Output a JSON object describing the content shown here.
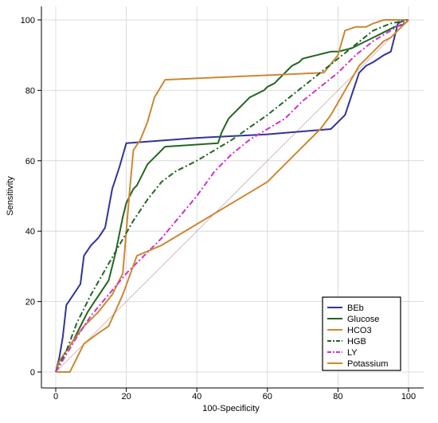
{
  "chart_data": {
    "type": "line",
    "title": "",
    "xlabel": "100-Specificity",
    "ylabel": "Sensitivity",
    "xlim": [
      0,
      100
    ],
    "ylim": [
      0,
      100
    ],
    "xticks": [
      0,
      20,
      40,
      60,
      80,
      100
    ],
    "yticks": [
      0,
      20,
      40,
      60,
      80,
      100
    ],
    "grid": true,
    "legend_position": "bottom-right",
    "reference_line": {
      "x": [
        0,
        100
      ],
      "y": [
        0,
        100
      ],
      "color": "#c9a9a9"
    },
    "series": [
      {
        "name": "BEb",
        "color": "#333399",
        "dash": "solid",
        "x": [
          0,
          1,
          2,
          3,
          5,
          7,
          8,
          10,
          12,
          14,
          16,
          18,
          20,
          40,
          60,
          78,
          80,
          82,
          84,
          86,
          88,
          90,
          93,
          95,
          97,
          99,
          100
        ],
        "y": [
          0,
          4,
          10,
          19,
          22,
          25,
          33,
          36,
          38,
          41,
          52,
          58,
          65,
          66.5,
          67.5,
          69,
          71,
          73,
          79,
          85,
          87,
          88,
          90,
          91,
          99,
          100,
          100
        ]
      },
      {
        "name": "Glucose",
        "color": "#226622",
        "dash": "solid",
        "x": [
          0,
          1,
          3,
          5,
          7,
          9,
          11,
          13,
          15,
          16,
          17,
          18,
          19,
          20,
          21,
          22,
          23,
          24,
          25,
          26,
          27,
          28,
          29,
          31,
          46,
          47,
          48,
          49,
          50,
          51,
          52,
          53,
          54,
          55,
          56,
          57,
          58,
          59,
          60,
          61,
          62,
          63,
          64,
          65,
          66,
          67,
          68,
          69,
          70,
          72,
          74,
          76,
          78,
          80,
          82,
          84,
          86,
          88,
          90,
          92,
          94,
          96,
          98,
          99,
          100
        ],
        "y": [
          0,
          3,
          6,
          9,
          13,
          17,
          20,
          23,
          26,
          30,
          34,
          39,
          44,
          48,
          50,
          52,
          53,
          55,
          57,
          59,
          60,
          61,
          62,
          64,
          65,
          68,
          70,
          72,
          73,
          74,
          75,
          76,
          77,
          78,
          78.5,
          79,
          79.5,
          80,
          81,
          81.5,
          82,
          83,
          84,
          85,
          86,
          87,
          87.5,
          88,
          89,
          89.5,
          90,
          90.5,
          91,
          91,
          91.5,
          92,
          93,
          94,
          95,
          96,
          97,
          98,
          98.5,
          99,
          100
        ]
      },
      {
        "name": "HCO3",
        "color": "#cc8833",
        "dash": "solid",
        "x": [
          0,
          1,
          3,
          5,
          8,
          12,
          16,
          19,
          20,
          21,
          22,
          24,
          26,
          28,
          31,
          76,
          80,
          82,
          85,
          88,
          90,
          93,
          96,
          100
        ],
        "y": [
          0,
          3,
          6,
          9,
          13,
          17,
          22,
          28,
          40,
          52,
          63,
          66,
          71,
          78,
          83,
          85,
          90,
          97,
          98,
          98,
          99,
          100,
          100,
          100
        ]
      },
      {
        "name": "HGB",
        "color": "#226622",
        "dash": "dashdot",
        "x": [
          0,
          3,
          6,
          10,
          14,
          18,
          22,
          26,
          30,
          34,
          40,
          50,
          60,
          70,
          80,
          85,
          90,
          95,
          100
        ],
        "y": [
          0,
          6,
          14,
          22,
          29,
          36,
          43,
          49,
          54,
          57,
          60,
          66,
          73,
          81,
          89,
          93,
          97,
          99,
          100
        ]
      },
      {
        "name": "LY",
        "color": "#cc33cc",
        "dash": "dashdot",
        "x": [
          0,
          3,
          6,
          10,
          15,
          20,
          25,
          30,
          35,
          40,
          45,
          50,
          55,
          60,
          65,
          70,
          75,
          80,
          85,
          90,
          95,
          100
        ],
        "y": [
          0,
          5,
          10,
          16,
          22,
          28,
          33,
          38,
          44,
          50,
          57,
          62,
          66,
          69,
          72,
          77,
          81,
          85,
          90,
          94,
          97,
          100
        ]
      },
      {
        "name": "Potassium",
        "color": "#cc8833",
        "dash": "solid",
        "x": [
          0,
          2,
          4,
          8,
          12,
          15,
          19,
          23,
          30,
          40,
          50,
          60,
          70,
          75,
          78,
          82,
          86,
          90,
          93,
          95,
          98,
          100
        ],
        "y": [
          0,
          0,
          0,
          8,
          11,
          13,
          22,
          33,
          36,
          42,
          48,
          54,
          64,
          69,
          73,
          80,
          87,
          91,
          94,
          95,
          98,
          100
        ]
      }
    ]
  }
}
